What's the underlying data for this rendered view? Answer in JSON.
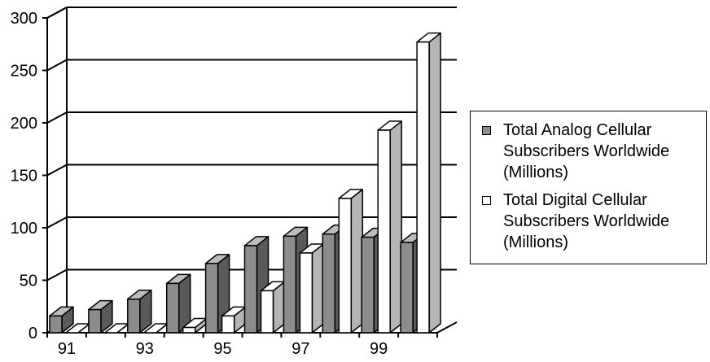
{
  "chart_data": {
    "type": "bar",
    "style": "3d-clustered-column",
    "x": [
      91,
      92,
      93,
      94,
      95,
      96,
      97,
      98,
      99,
      100
    ],
    "x_tick_labels": [
      "91",
      "93",
      "95",
      "97",
      "99"
    ],
    "y_tick_labels": [
      "0",
      "50",
      "100",
      "150",
      "200",
      "250",
      "300"
    ],
    "ylim": [
      0,
      300
    ],
    "grid": "horizontal",
    "legend_position": "right",
    "title": "",
    "xlabel": "",
    "ylabel": "",
    "series": [
      {
        "name": "Total Analog Cellular Subscribers Worldwide (Millions)",
        "color": "#8c8c8c",
        "values": [
          16,
          22,
          32,
          47,
          66,
          83,
          92,
          94,
          91,
          86
        ]
      },
      {
        "name": "Total Digital Cellular Subscribers Worldwide (Millions)",
        "color": "#ffffff",
        "values": [
          0,
          0,
          0,
          5,
          16,
          40,
          76,
          128,
          193,
          277
        ]
      }
    ]
  },
  "legend": {
    "items": [
      {
        "label": "Total Analog Cellular\nSubscribers Worldwide\n(Millions)",
        "color": "#8c8c8c"
      },
      {
        "label": "Total Digital Cellular\nSubscribers Worldwide\n(Millions)",
        "color": "#ffffff"
      }
    ]
  },
  "colors": {
    "analog_front": "#8c8c8c",
    "analog_side": "#5a5a5a",
    "analog_top": "#bdbdbd",
    "digital_front": "#ffffff",
    "digital_side": "#b5b5b5",
    "digital_top": "#ffffff",
    "grid": "#000000",
    "axis": "#000000"
  }
}
